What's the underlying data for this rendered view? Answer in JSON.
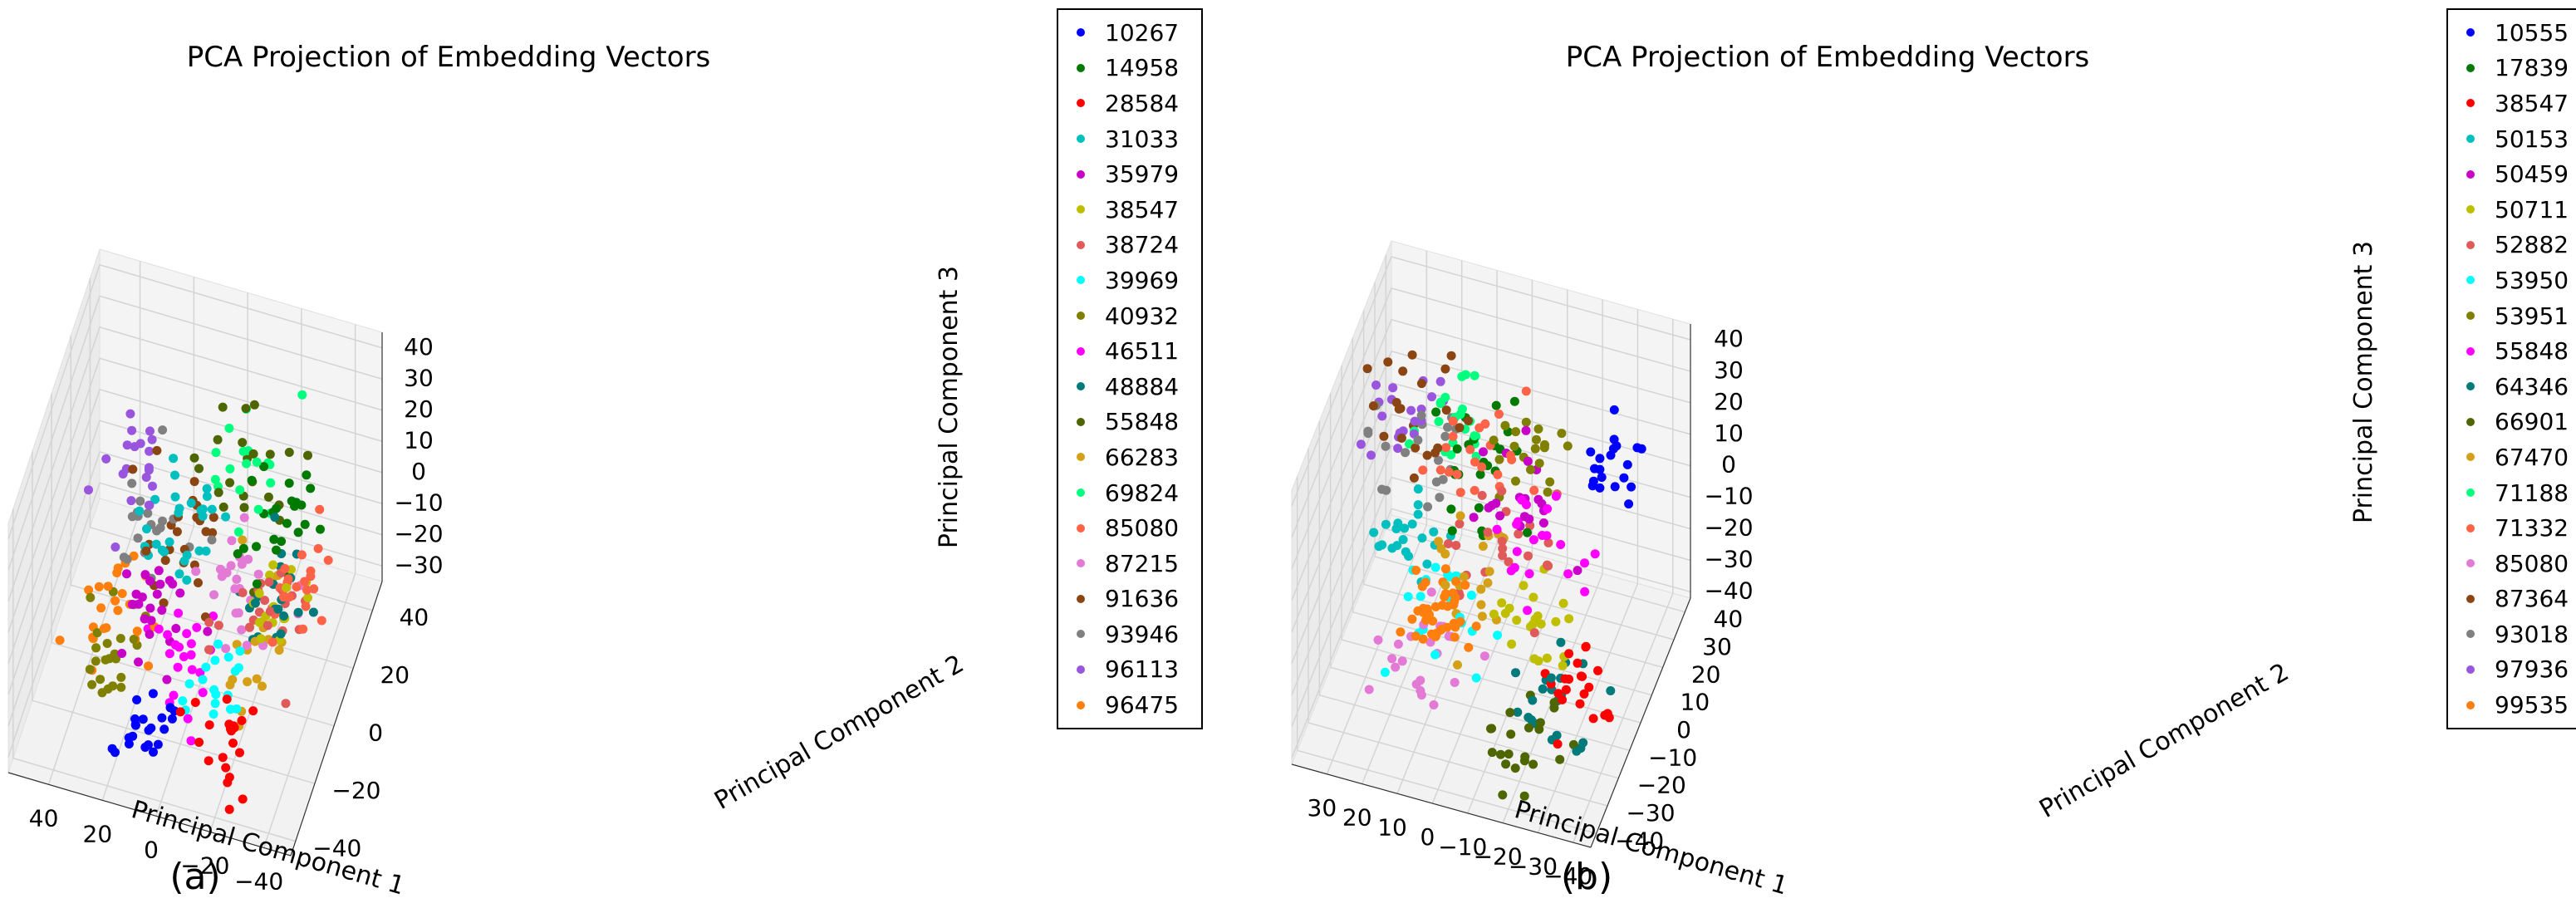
{
  "chart_data": [
    {
      "type": "scatter",
      "projection": "3d",
      "title": "PCA Projection of Embedding Vectors",
      "xlabel": "Principal Component 1",
      "ylabel": "Principal Component 2",
      "zlabel": "Principal Component 3",
      "panel_label": "(a)",
      "xlim": [
        -50,
        55
      ],
      "ylim": [
        -45,
        50
      ],
      "zlim": [
        -35,
        45
      ],
      "xticks": [
        -40,
        -20,
        0,
        20,
        40
      ],
      "yticks": [
        -40,
        -20,
        0,
        20,
        40
      ],
      "zticks": [
        -30,
        -20,
        -10,
        0,
        10,
        20,
        30,
        40
      ],
      "grid": true,
      "legend_position": "right",
      "series": [
        {
          "name": "10267",
          "color": "#0000ff",
          "cx": 8,
          "cy": -30,
          "cz": -22,
          "spread": 6,
          "n": 22
        },
        {
          "name": "14958",
          "color": "#007a00",
          "cx": -30,
          "cy": 5,
          "cz": 22,
          "spread": 6,
          "n": 24
        },
        {
          "name": "28584",
          "color": "#ff0000",
          "cx": -25,
          "cy": -30,
          "cz": -22,
          "spread": 7,
          "n": 22
        },
        {
          "name": "31033",
          "color": "#00bfbf",
          "cx": 10,
          "cy": 10,
          "cz": 8,
          "spread": 8,
          "n": 28
        },
        {
          "name": "35979",
          "color": "#c800c8",
          "cx": 10,
          "cy": -10,
          "cz": -5,
          "spread": 8,
          "n": 24
        },
        {
          "name": "38547",
          "color": "#bfbf00",
          "cx": -30,
          "cy": -8,
          "cz": 10,
          "spread": 6,
          "n": 18
        },
        {
          "name": "38724",
          "color": "#e05a5a",
          "cx": -28,
          "cy": -10,
          "cz": 0,
          "spread": 8,
          "n": 22
        },
        {
          "name": "39969",
          "color": "#00ffff",
          "cx": -15,
          "cy": -25,
          "cz": -8,
          "spread": 6,
          "n": 18
        },
        {
          "name": "40932",
          "color": "#808000",
          "cx": 30,
          "cy": -10,
          "cz": -25,
          "spread": 6,
          "n": 22
        },
        {
          "name": "46511",
          "color": "#ff00ff",
          "cx": 0,
          "cy": -18,
          "cz": -12,
          "spread": 7,
          "n": 22
        },
        {
          "name": "48884",
          "color": "#007a7a",
          "cx": -30,
          "cy": -5,
          "cz": 5,
          "spread": 7,
          "n": 20
        },
        {
          "name": "55848",
          "color": "#4d6600",
          "cx": -10,
          "cy": 20,
          "cz": 20,
          "spread": 9,
          "n": 22
        },
        {
          "name": "66283",
          "color": "#d4a017",
          "cx": -20,
          "cy": -5,
          "cz": -10,
          "spread": 8,
          "n": 18
        },
        {
          "name": "69824",
          "color": "#00ff7f",
          "cx": -10,
          "cy": 15,
          "cz": 25,
          "spread": 7,
          "n": 18
        },
        {
          "name": "85080",
          "color": "#ff6347",
          "cx": -40,
          "cy": -10,
          "cz": 15,
          "spread": 6,
          "n": 22
        },
        {
          "name": "87215",
          "color": "#e37ad6",
          "cx": -15,
          "cy": 0,
          "cz": 0,
          "spread": 9,
          "n": 24
        },
        {
          "name": "91636",
          "color": "#8b4513",
          "cx": 15,
          "cy": 15,
          "cz": -5,
          "spread": 9,
          "n": 24
        },
        {
          "name": "93946",
          "color": "#808080",
          "cx": 25,
          "cy": 10,
          "cz": 0,
          "spread": 8,
          "n": 20
        },
        {
          "name": "96113",
          "color": "#9955dd",
          "cx": 30,
          "cy": 20,
          "cz": 10,
          "spread": 7,
          "n": 20
        },
        {
          "name": "96475",
          "color": "#ff7f0e",
          "cx": 30,
          "cy": -5,
          "cz": -15,
          "spread": 8,
          "n": 24
        }
      ]
    },
    {
      "type": "scatter",
      "projection": "3d",
      "title": "PCA Projection of Embedding Vectors",
      "xlabel": "Principal Component 1",
      "ylabel": "Principal Component 2",
      "zlabel": "Principal Component 3",
      "panel_label": "(b)",
      "xlim": [
        -45,
        40
      ],
      "ylim": [
        -45,
        45
      ],
      "zlim": [
        -42,
        45
      ],
      "xticks": [
        -40,
        -30,
        -20,
        -10,
        0,
        10,
        20,
        30
      ],
      "yticks": [
        -40,
        -30,
        -20,
        -10,
        0,
        10,
        20,
        30,
        40
      ],
      "zticks": [
        -40,
        -30,
        -20,
        -10,
        0,
        10,
        20,
        30,
        40
      ],
      "grid": true,
      "legend_position": "right",
      "series": [
        {
          "name": "10555",
          "color": "#0000ff",
          "cx": -35,
          "cy": 10,
          "cz": 30,
          "spread": 6,
          "n": 20
        },
        {
          "name": "17839",
          "color": "#007a00",
          "cx": 5,
          "cy": 15,
          "cz": 10,
          "spread": 7,
          "n": 24
        },
        {
          "name": "38547",
          "color": "#ff0000",
          "cx": -35,
          "cy": -25,
          "cz": -15,
          "spread": 6,
          "n": 22
        },
        {
          "name": "50153",
          "color": "#00bfbf",
          "cx": 25,
          "cy": 10,
          "cz": -15,
          "spread": 6,
          "n": 22
        },
        {
          "name": "50459",
          "color": "#c800c8",
          "cx": -10,
          "cy": 0,
          "cz": 15,
          "spread": 7,
          "n": 20
        },
        {
          "name": "50711",
          "color": "#bfbf00",
          "cx": -15,
          "cy": -10,
          "cz": -10,
          "spread": 6,
          "n": 22
        },
        {
          "name": "52882",
          "color": "#e05a5a",
          "cx": -5,
          "cy": 5,
          "cz": 0,
          "spread": 9,
          "n": 24
        },
        {
          "name": "53950",
          "color": "#00ffff",
          "cx": 10,
          "cy": -5,
          "cz": -15,
          "spread": 7,
          "n": 20
        },
        {
          "name": "53951",
          "color": "#808000",
          "cx": -10,
          "cy": 10,
          "cz": 25,
          "spread": 6,
          "n": 20
        },
        {
          "name": "55848",
          "color": "#ff00ff",
          "cx": -20,
          "cy": -10,
          "cz": 15,
          "spread": 7,
          "n": 20
        },
        {
          "name": "64346",
          "color": "#007a7a",
          "cx": -25,
          "cy": -20,
          "cz": -25,
          "spread": 7,
          "n": 22
        },
        {
          "name": "66901",
          "color": "#4d6600",
          "cx": -20,
          "cy": -30,
          "cz": -30,
          "spread": 6,
          "n": 22
        },
        {
          "name": "67470",
          "color": "#d4a017",
          "cx": 0,
          "cy": -10,
          "cz": 0,
          "spread": 8,
          "n": 20
        },
        {
          "name": "71188",
          "color": "#00ff7f",
          "cx": 15,
          "cy": 25,
          "cz": 15,
          "spread": 6,
          "n": 22
        },
        {
          "name": "71332",
          "color": "#ff6347",
          "cx": 0,
          "cy": 5,
          "cz": 25,
          "spread": 8,
          "n": 22
        },
        {
          "name": "85080",
          "color": "#e37ad6",
          "cx": 10,
          "cy": -15,
          "cz": -25,
          "spread": 8,
          "n": 22
        },
        {
          "name": "87364",
          "color": "#8b4513",
          "cx": 20,
          "cy": 15,
          "cz": 20,
          "spread": 9,
          "n": 22
        },
        {
          "name": "93018",
          "color": "#808080",
          "cx": 25,
          "cy": 20,
          "cz": 5,
          "spread": 8,
          "n": 20
        },
        {
          "name": "97936",
          "color": "#9955dd",
          "cx": 30,
          "cy": 25,
          "cz": 10,
          "spread": 6,
          "n": 20
        },
        {
          "name": "99535",
          "color": "#ff7f0e",
          "cx": 5,
          "cy": -20,
          "cz": -5,
          "spread": 5,
          "n": 40
        }
      ]
    }
  ]
}
